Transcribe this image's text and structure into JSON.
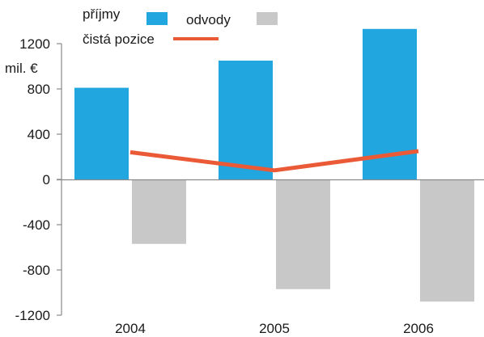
{
  "chart_data": {
    "type": "bar",
    "categories": [
      "2004",
      "2005",
      "2006"
    ],
    "series": [
      {
        "name": "příjmy",
        "kind": "bar",
        "color": "#22a6e0",
        "values": [
          810,
          1050,
          1330
        ]
      },
      {
        "name": "odvody",
        "kind": "bar",
        "color": "#c8c8c8",
        "values": [
          -570,
          -970,
          -1080
        ]
      },
      {
        "name": "čistá pozice",
        "kind": "line",
        "color": "#ea5a36",
        "values": [
          240,
          80,
          250
        ]
      }
    ],
    "yunit": "mil. €",
    "yticks": [
      1200,
      800,
      400,
      0,
      -400,
      -800,
      -1200
    ],
    "ylim": [
      -1200,
      1200
    ],
    "grid": false,
    "legend_position": "top-left"
  }
}
